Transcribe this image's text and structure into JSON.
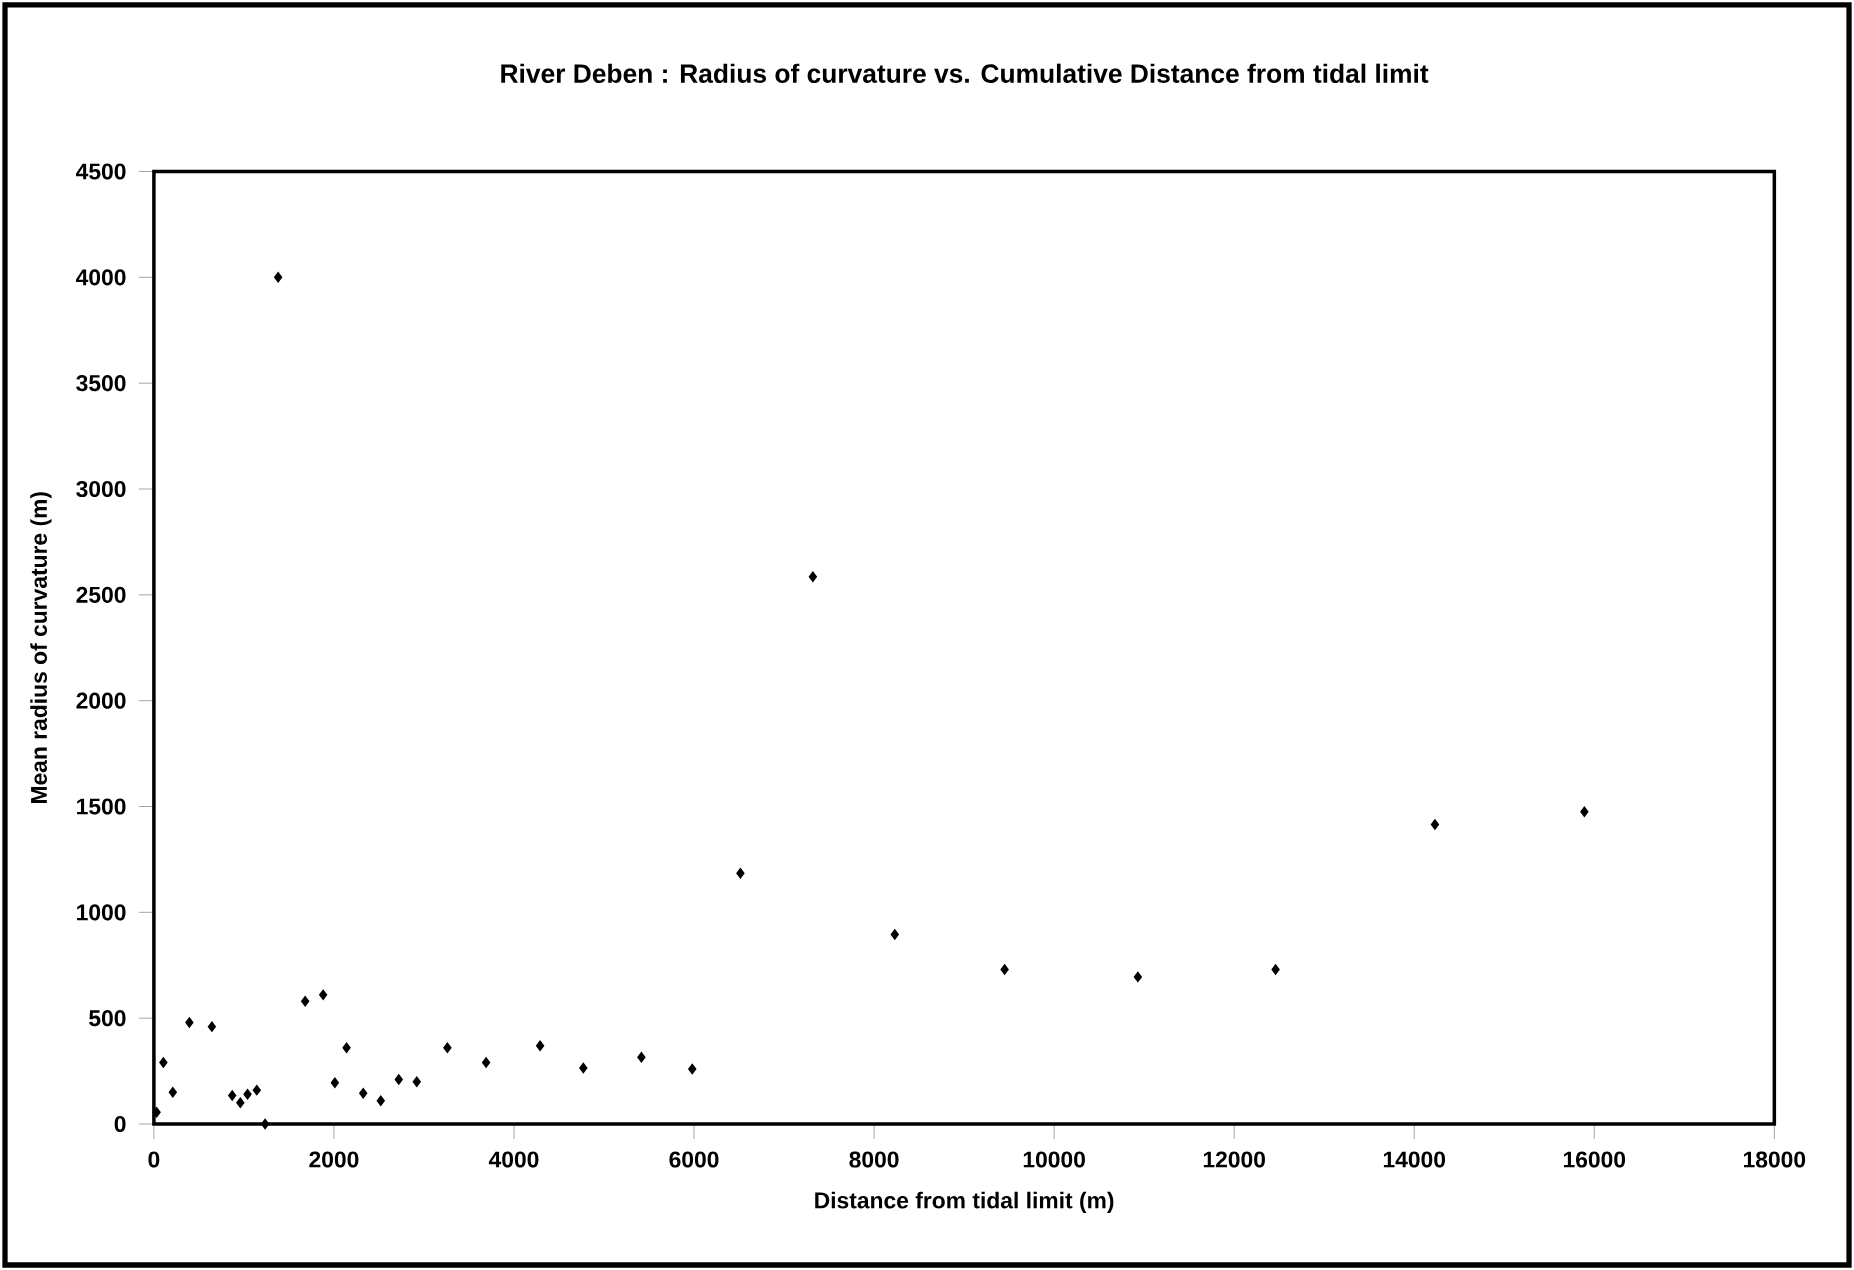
{
  "chart_data": {
    "type": "scatter",
    "title": "River Deben : Radius of curvature vs. Cumulative Distance from tidal limit",
    "xlabel": "Distance from tidal limit (m)",
    "ylabel": "Mean radius of curvature (m)",
    "x": [
      30,
      105,
      210,
      394,
      644,
      870,
      960,
      1040,
      1143,
      1235,
      1380,
      1680,
      1880,
      2010,
      2140,
      2325,
      2520,
      2720,
      2920,
      3260,
      3690,
      4290,
      4770,
      5415,
      5980,
      6515,
      7320,
      8230,
      9450,
      10930,
      12460,
      14230,
      15890
    ],
    "values": [
      55,
      290,
      150,
      480,
      460,
      135,
      100,
      140,
      160,
      0,
      4000,
      580,
      610,
      195,
      360,
      145,
      110,
      210,
      200,
      360,
      290,
      370,
      265,
      315,
      260,
      1185,
      2585,
      895,
      730,
      695,
      730,
      1415,
      1475
    ],
    "color": "#000000",
    "marker": "diamond",
    "grid": false,
    "xlim": [
      0,
      18000
    ],
    "xticks": [
      0,
      2000,
      4000,
      6000,
      8000,
      10000,
      12000,
      14000,
      16000,
      18000
    ],
    "ylim": [
      0,
      4500
    ],
    "yticks": [
      0,
      500,
      1000,
      1500,
      2000,
      2500,
      3000,
      3500,
      4000,
      4500
    ]
  }
}
